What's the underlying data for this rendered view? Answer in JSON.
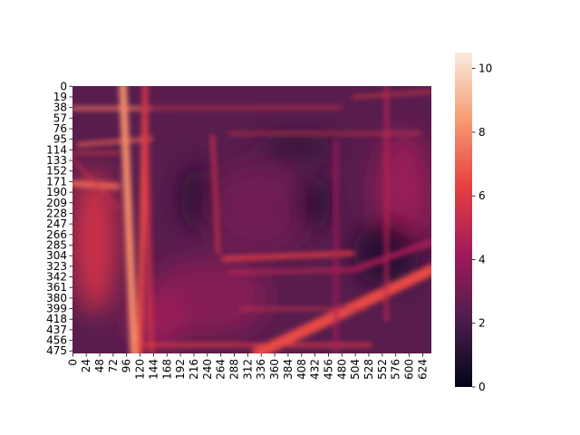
{
  "chart_data": {
    "type": "heatmap",
    "title": "",
    "xlabel": "",
    "ylabel": "",
    "x_tick_labels": [
      "0",
      "24",
      "48",
      "72",
      "96",
      "120",
      "144",
      "168",
      "192",
      "216",
      "240",
      "264",
      "288",
      "312",
      "336",
      "360",
      "384",
      "408",
      "432",
      "456",
      "480",
      "504",
      "528",
      "552",
      "576",
      "600",
      "624"
    ],
    "y_tick_labels": [
      "0",
      "19",
      "38",
      "57",
      "76",
      "95",
      "114",
      "133",
      "152",
      "171",
      "190",
      "209",
      "228",
      "247",
      "266",
      "285",
      "304",
      "323",
      "342",
      "361",
      "380",
      "399",
      "418",
      "437",
      "456",
      "475"
    ],
    "x_range": [
      0,
      640
    ],
    "y_range": [
      0,
      480
    ],
    "colorbar": {
      "range": [
        0,
        10.5
      ],
      "ticks": [
        0,
        2,
        4,
        6,
        8,
        10
      ],
      "tick_labels": [
        "0",
        "2",
        "4",
        "6",
        "8",
        "10"
      ],
      "colormap": "rocket",
      "colors": [
        "#03051a",
        "#4c1d4b",
        "#a11a5b",
        "#e83f3f",
        "#f69c73",
        "#faebdd"
      ]
    },
    "background_value": 2.4,
    "features": [
      {
        "kind": "band",
        "x1": 0,
        "y1": 40,
        "x2": 140,
        "y2": 40,
        "value": 7.5,
        "width": 6
      },
      {
        "kind": "band",
        "x1": 10,
        "y1": 105,
        "x2": 140,
        "y2": 95,
        "value": 7.0,
        "width": 6
      },
      {
        "kind": "band",
        "x1": 0,
        "y1": 175,
        "x2": 80,
        "y2": 180,
        "value": 7.2,
        "width": 10
      },
      {
        "kind": "band",
        "x1": 90,
        "y1": 0,
        "x2": 110,
        "y2": 480,
        "value": 8.0,
        "width": 14
      },
      {
        "kind": "band",
        "x1": 130,
        "y1": 0,
        "x2": 120,
        "y2": 480,
        "value": 6.5,
        "width": 10
      },
      {
        "kind": "band",
        "x1": 130,
        "y1": 0,
        "x2": 140,
        "y2": 480,
        "value": 5.5,
        "width": 8
      },
      {
        "kind": "band",
        "x1": 120,
        "y1": 465,
        "x2": 530,
        "y2": 465,
        "value": 6.0,
        "width": 6
      },
      {
        "kind": "band",
        "x1": 330,
        "y1": 480,
        "x2": 640,
        "y2": 330,
        "value": 6.5,
        "width": 20
      },
      {
        "kind": "band",
        "x1": 120,
        "y1": 40,
        "x2": 480,
        "y2": 38,
        "value": 5.5,
        "width": 4
      },
      {
        "kind": "band",
        "x1": 280,
        "y1": 85,
        "x2": 620,
        "y2": 85,
        "value": 5.5,
        "width": 4
      },
      {
        "kind": "band",
        "x1": 500,
        "y1": 20,
        "x2": 640,
        "y2": 10,
        "value": 6.0,
        "width": 4
      },
      {
        "kind": "band",
        "x1": 250,
        "y1": 90,
        "x2": 260,
        "y2": 300,
        "value": 5.5,
        "width": 6
      },
      {
        "kind": "band",
        "x1": 270,
        "y1": 310,
        "x2": 500,
        "y2": 300,
        "value": 6.0,
        "width": 8
      },
      {
        "kind": "band",
        "x1": 280,
        "y1": 335,
        "x2": 500,
        "y2": 330,
        "value": 5.0,
        "width": 6
      },
      {
        "kind": "band",
        "x1": 470,
        "y1": 100,
        "x2": 470,
        "y2": 480,
        "value": 4.5,
        "width": 6
      },
      {
        "kind": "band",
        "x1": 560,
        "y1": 0,
        "x2": 560,
        "y2": 420,
        "value": 5.0,
        "width": 6
      },
      {
        "kind": "band",
        "x1": 300,
        "y1": 400,
        "x2": 520,
        "y2": 400,
        "value": 5.5,
        "width": 4
      },
      {
        "kind": "band",
        "x1": 0,
        "y1": 130,
        "x2": 80,
        "y2": 220,
        "value": 5.5,
        "width": 4
      },
      {
        "kind": "band",
        "x1": 0,
        "y1": 120,
        "x2": 80,
        "y2": 120,
        "value": 6.0,
        "width": 4
      },
      {
        "kind": "band",
        "x1": 500,
        "y1": 330,
        "x2": 640,
        "y2": 280,
        "value": 4.5,
        "width": 10
      },
      {
        "kind": "blob",
        "cx": 40,
        "cy": 280,
        "rx": 40,
        "ry": 130,
        "value": 5.5
      },
      {
        "kind": "blob",
        "cx": 330,
        "cy": 220,
        "rx": 90,
        "ry": 80,
        "value": 3.0
      },
      {
        "kind": "blob",
        "cx": 240,
        "cy": 380,
        "rx": 110,
        "ry": 70,
        "value": 3.5
      },
      {
        "kind": "blob",
        "cx": 150,
        "cy": 420,
        "rx": 50,
        "ry": 55,
        "value": 4.0
      },
      {
        "kind": "blob",
        "cx": 400,
        "cy": 110,
        "rx": 70,
        "ry": 20,
        "value": 1.2
      },
      {
        "kind": "blob",
        "cx": 590,
        "cy": 200,
        "rx": 50,
        "ry": 120,
        "value": 4.0
      },
      {
        "kind": "blob",
        "cx": 560,
        "cy": 300,
        "rx": 60,
        "ry": 60,
        "value": 1.0
      },
      {
        "kind": "blob",
        "cx": 220,
        "cy": 200,
        "rx": 25,
        "ry": 60,
        "value": 1.0
      },
      {
        "kind": "blob",
        "cx": 430,
        "cy": 210,
        "rx": 30,
        "ry": 45,
        "value": 1.0
      }
    ]
  }
}
